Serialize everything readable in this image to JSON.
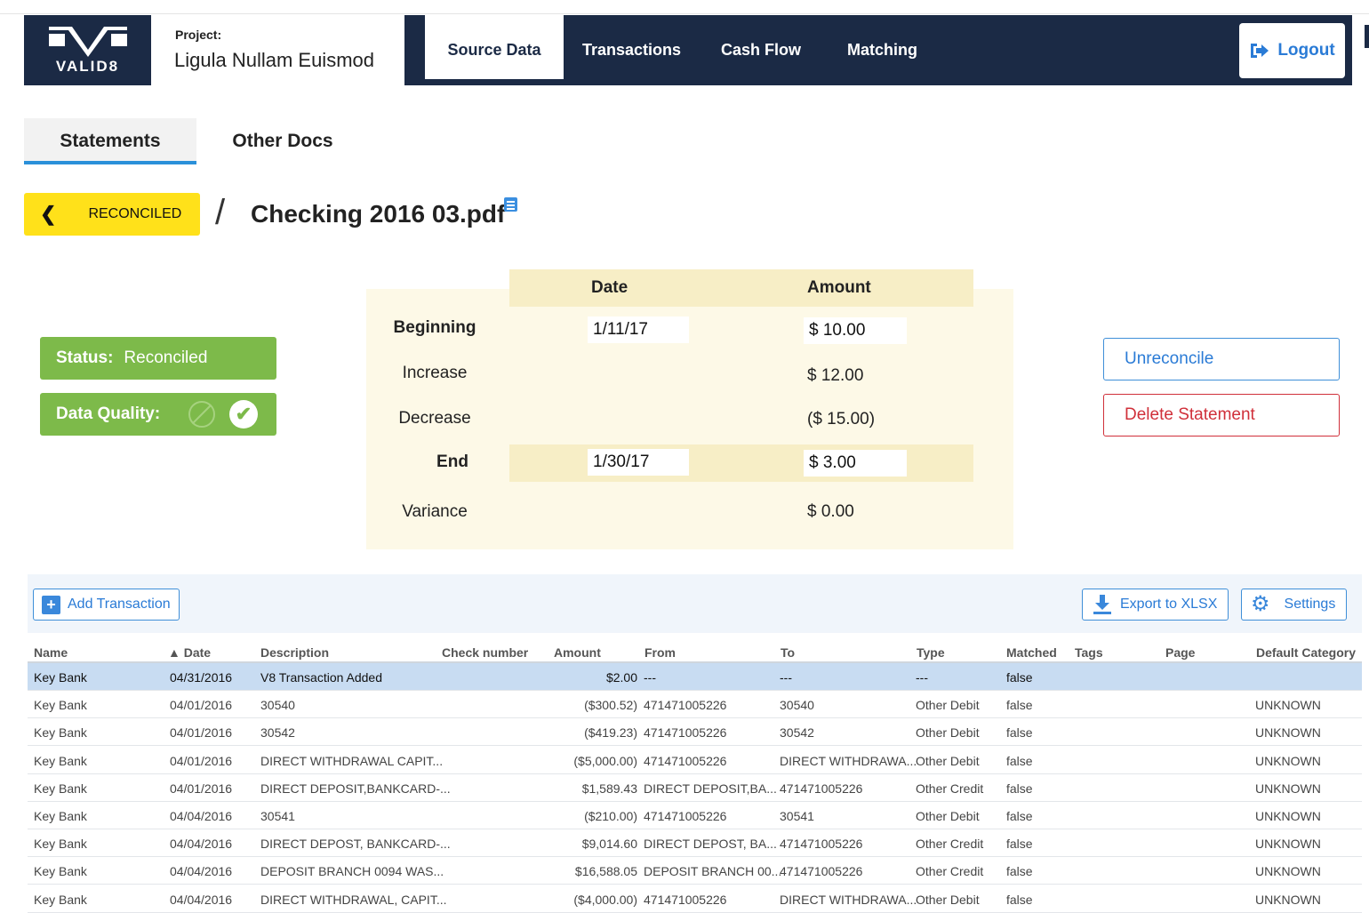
{
  "header": {
    "logo_text": "VALID8",
    "project_label": "Project:",
    "project_name": "Ligula Nullam Euismod",
    "nav": [
      "Source Data",
      "Transactions",
      "Cash Flow",
      "Matching"
    ],
    "active_nav": "Source Data",
    "logout_label": "Logout"
  },
  "subtabs": [
    "Statements",
    "Other Docs"
  ],
  "breadcrumb": {
    "back_label": "RECONCILED",
    "separator": "/",
    "file_name": "Checking 2016 03.pdf"
  },
  "status": {
    "status_label": "Status:",
    "status_value": "Reconciled",
    "quality_label": "Data Quality:"
  },
  "summary": {
    "col_date": "Date",
    "col_amount": "Amount",
    "beginning_label": "Beginning",
    "beginning_date": "1/11/17",
    "beginning_amount": "$ 10.00",
    "increase_label": "Increase",
    "increase_amount": "$ 12.00",
    "decrease_label": "Decrease",
    "decrease_amount": "($ 15.00)",
    "end_label": "End",
    "end_date": "1/30/17",
    "end_amount": "$ 3.00",
    "variance_label": "Variance",
    "variance_amount": "$ 0.00"
  },
  "actions": {
    "unreconcile": "Unreconcile",
    "delete": "Delete Statement"
  },
  "toolbar": {
    "add": "Add Transaction",
    "export": "Export to XLSX",
    "settings": "Settings"
  },
  "table": {
    "columns": [
      "Name",
      "▲ Date",
      "Description",
      "Check number",
      "Amount",
      "From",
      "To",
      "Type",
      "Matched",
      "Tags",
      "Page",
      "Default Category"
    ],
    "rows": [
      {
        "name": "Key Bank",
        "date": "04/31/2016",
        "desc": "V8 Transaction Added",
        "check": "",
        "amount": "$2.00",
        "from": "---",
        "to": "---",
        "type": "---",
        "matched": "false",
        "tags": "",
        "page": "",
        "category": ""
      },
      {
        "name": "Key Bank",
        "date": "04/01/2016",
        "desc": "30540",
        "check": "",
        "amount": "($300.52)",
        "from": "471471005226",
        "to": "30540",
        "type": "Other Debit",
        "matched": "false",
        "tags": "",
        "page": "",
        "category": "UNKNOWN"
      },
      {
        "name": "Key Bank",
        "date": "04/01/2016",
        "desc": "30542",
        "check": "",
        "amount": "($419.23)",
        "from": "471471005226",
        "to": "30542",
        "type": "Other Debit",
        "matched": "false",
        "tags": "",
        "page": "",
        "category": "UNKNOWN"
      },
      {
        "name": "Key Bank",
        "date": "04/01/2016",
        "desc": "DIRECT WITHDRAWAL CAPIT...",
        "check": "",
        "amount": "($5,000.00)",
        "from": "471471005226",
        "to": "DIRECT WITHDRAWA...",
        "type": "Other Debit",
        "matched": "false",
        "tags": "",
        "page": "",
        "category": "UNKNOWN"
      },
      {
        "name": "Key Bank",
        "date": "04/01/2016",
        "desc": "DIRECT DEPOSIT,BANKCARD-...",
        "check": "",
        "amount": "$1,589.43",
        "from": "DIRECT DEPOSIT,BA...",
        "to": "471471005226",
        "type": "Other Credit",
        "matched": "false",
        "tags": "",
        "page": "",
        "category": "UNKNOWN"
      },
      {
        "name": "Key Bank",
        "date": "04/04/2016",
        "desc": "30541",
        "check": "",
        "amount": "($210.00)",
        "from": "471471005226",
        "to": "30541",
        "type": "Other Debit",
        "matched": "false",
        "tags": "",
        "page": "",
        "category": "UNKNOWN"
      },
      {
        "name": "Key Bank",
        "date": "04/04/2016",
        "desc": "DIRECT DEPOST, BANKCARD-...",
        "check": "",
        "amount": "$9,014.60",
        "from": "DIRECT DEPOST, BA...",
        "to": "471471005226",
        "type": "Other Credit",
        "matched": "false",
        "tags": "",
        "page": "",
        "category": "UNKNOWN"
      },
      {
        "name": "Key Bank",
        "date": "04/04/2016",
        "desc": "DEPOSIT BRANCH 0094 WAS...",
        "check": "",
        "amount": "$16,588.05",
        "from": "DEPOSIT BRANCH 00...",
        "to": "471471005226",
        "type": "Other Credit",
        "matched": "false",
        "tags": "",
        "page": "",
        "category": "UNKNOWN"
      },
      {
        "name": "Key Bank",
        "date": "04/04/2016",
        "desc": "DIRECT WITHDRAWAL, CAPIT...",
        "check": "",
        "amount": "($4,000.00)",
        "from": "471471005226",
        "to": "DIRECT WITHDRAWA...",
        "type": "Other Debit",
        "matched": "false",
        "tags": "",
        "page": "",
        "category": "UNKNOWN"
      }
    ]
  },
  "colors": {
    "navy": "#1b2a45",
    "accent_blue": "#2a7bd6",
    "status_green": "#7dba4a",
    "reconciled_yellow": "#ffe11a",
    "danger_red": "#d0303a"
  }
}
